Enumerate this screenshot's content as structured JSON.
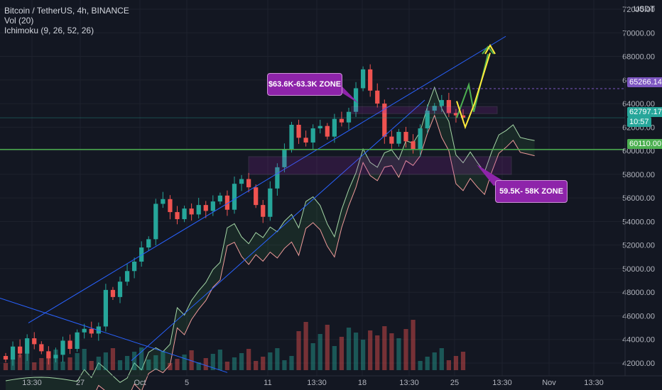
{
  "header": {
    "symbol_line": "Bitcoin / TetherUS, 4h, BINANCE",
    "vol_line": "Vol (20)",
    "ichimoku_line": "Ichimoku (9, 26, 52, 26)"
  },
  "price_axis": {
    "currency_top": "USDT",
    "ticks": [
      "72000.00",
      "70000.00",
      "68000.00",
      "66000.00",
      "64000.00",
      "62000.00",
      "60000.00",
      "58000.00",
      "56000.00",
      "54000.00",
      "52000.00",
      "50000.00",
      "48000.00",
      "46000.00",
      "44000.00",
      "42000.00"
    ],
    "tags": {
      "purple": {
        "text": "65266.14",
        "color": "#7e57c2"
      },
      "current": {
        "text": "62797.17",
        "timer": "10:57",
        "color": "#26a69a"
      },
      "line": {
        "text": "60110.00",
        "color": "#4caf50"
      }
    }
  },
  "time_axis": {
    "labels": [
      "13:30",
      "27",
      "Oct",
      "5",
      "11",
      "13:30",
      "18",
      "13:30",
      "25",
      "13:30",
      "Nov",
      "13:30"
    ]
  },
  "annotations": {
    "upper_zone": "$63.6K-63.3K ZONE",
    "lower_zone": "59.5K- 58K ZONE"
  },
  "colors": {
    "bg": "#131722",
    "up": "#26a69a",
    "down": "#ef5350",
    "channel": "#2962ff",
    "zone": "#9c27b0",
    "arrow_green": "#4caf50",
    "arrow_yellow": "#ffeb3b",
    "ichimoku_lead_a": "#a5d6a7",
    "ichimoku_lead_b": "#ef9a9a"
  },
  "chart_data": {
    "type": "candlestick",
    "y_axis": {
      "ylim": [
        41200,
        72500
      ]
    },
    "x_axis_labels": [
      "13:30",
      "27",
      "Oct",
      "5",
      "11",
      "13:30",
      "18",
      "13:30",
      "25",
      "13:30",
      "Nov",
      "13:30"
    ],
    "price_series_close": [
      42300,
      43400,
      42800,
      44100,
      43600,
      43000,
      42400,
      42700,
      43900,
      43200,
      44600,
      44900,
      44500,
      45100,
      48200,
      47600,
      48900,
      49800,
      50600,
      51800,
      52500,
      55500,
      55900,
      54800,
      54200,
      55100,
      54600,
      55400,
      54900,
      55700,
      56200,
      55000,
      57200,
      57600,
      56900,
      55400,
      54400,
      56800,
      58600,
      60100,
      62200,
      61100,
      60700,
      61900,
      62100,
      61200,
      62700,
      62400,
      63300,
      65300,
      66900,
      65100,
      64000,
      61200,
      60600,
      61600,
      60800,
      60100,
      61900,
      63400,
      63800,
      64300,
      63200,
      63000,
      62800
    ],
    "volume_level": "low-to-moderate, spike near the last third",
    "zones": [
      {
        "label": "$63.6K-63.3K ZONE",
        "low": 63300,
        "high": 63600
      },
      {
        "label": "59.5K- 58K ZONE",
        "low": 58000,
        "high": 59500
      }
    ],
    "horizontal_levels": [
      {
        "value": 65266.14,
        "style": "dotted"
      },
      {
        "value": 62797.17,
        "style": "current price"
      },
      {
        "value": 60110.0,
        "style": "solid"
      }
    ],
    "projection_targets": [
      {
        "color": "green",
        "target": 68200
      },
      {
        "color": "yellow",
        "target": 68300
      }
    ]
  }
}
